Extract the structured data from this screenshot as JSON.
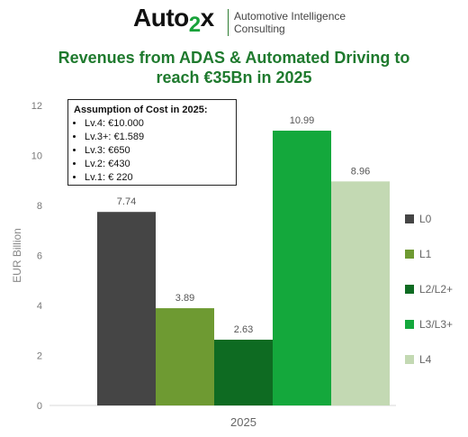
{
  "header": {
    "logo": "Auto2x",
    "tagline_line1": "Automotive Intelligence",
    "tagline_line2": "Consulting"
  },
  "title_line1": "Revenues from ADAS & Automated Driving to",
  "title_line2": "reach €35Bn in 2025",
  "assumption": {
    "heading": "Assumption of Cost in 2025:",
    "items": [
      "Lv.4: €10.000",
      "Lv.3+: €1.589",
      "Lv.3: €650",
      "Lv.2: €430",
      "Lv.1: € 220"
    ]
  },
  "chart_data": {
    "type": "bar",
    "title": "Revenues from ADAS & Automated Driving to reach €35Bn in 2025",
    "categories": [
      "2025"
    ],
    "ylabel": "EUR Billion",
    "xlabel": "",
    "ylim": [
      0,
      12
    ],
    "yticks": [
      0,
      2,
      4,
      6,
      8,
      10,
      12
    ],
    "grid": false,
    "legend_position": "right",
    "series": [
      {
        "name": "L0",
        "values": [
          7.74
        ],
        "label": "7.74",
        "color": "#454545"
      },
      {
        "name": "L1",
        "values": [
          3.89
        ],
        "label": "3.89",
        "color": "#6e9a32"
      },
      {
        "name": "L2/L2+",
        "values": [
          2.63
        ],
        "label": "2.63",
        "color": "#0e6b22"
      },
      {
        "name": "L3/L3+",
        "values": [
          10.99
        ],
        "label": "10.99",
        "color": "#14a83c"
      },
      {
        "name": "L4",
        "values": [
          8.96
        ],
        "label": "8.96",
        "color": "#c3d9b3"
      }
    ]
  }
}
